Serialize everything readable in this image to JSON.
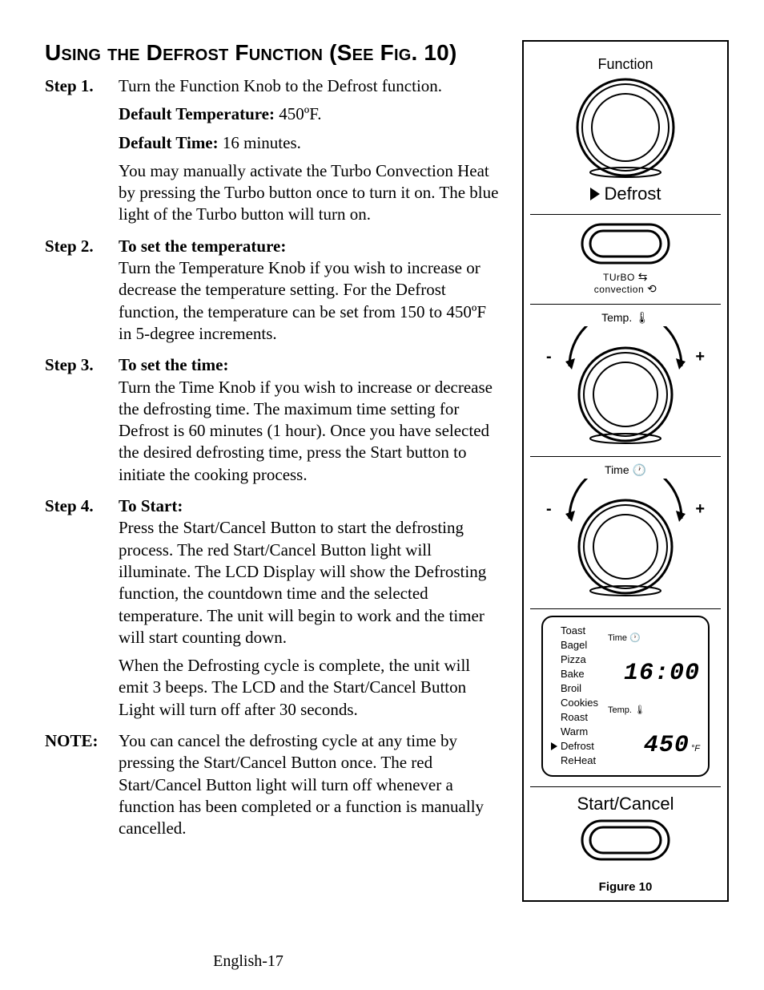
{
  "title": "Using the Defrost Function (See Fig. 10)",
  "steps": {
    "s1": {
      "label": "Step 1.",
      "p1": "Turn the Function Knob to the Defrost function.",
      "p2a": "Default Temperature:",
      "p2b": " 450ºF.",
      "p3a": "Default Time:",
      "p3b": " 16 minutes.",
      "p4": "You may manually activate the Turbo Convection Heat by pressing the Turbo button once to turn it on. The blue light of the Turbo button will turn on."
    },
    "s2": {
      "label": "Step 2.",
      "lead": "To set the temperature:",
      "p1": "Turn the Temperature Knob if you wish to increase or decrease the temperature setting. For the Defrost function, the temperature can be set from 150 to 450ºF in 5-degree increments."
    },
    "s3": {
      "label": "Step 3.",
      "lead": "To set the time:",
      "p1": "Turn the Time Knob if you wish to increase or decrease the defrosting time. The maximum time setting for Defrost is 60 minutes (1 hour). Once you have selected the desired defrosting time, press the Start button to initiate the cooking process."
    },
    "s4": {
      "label": "Step 4.",
      "lead": "To Start:",
      "p1": "Press the Start/Cancel Button to start the defrosting process. The red Start/Cancel Button light will illuminate. The LCD Display will show the Defrosting function, the countdown time and the selected temperature. The unit will begin to work and the timer will start counting down.",
      "p2": "When the Defrosting cycle is complete, the unit will emit 3 beeps. The LCD and the Start/Cancel Button Light will turn off after 30 seconds."
    },
    "note": {
      "label": "NOTE:",
      "p1": "You can cancel the defrosting cycle at any time by pressing the Start/Cancel Button once. The red Start/Cancel Button light will turn off whenever a function has been completed or a function is manually cancelled."
    }
  },
  "footer": "English-17",
  "figure": {
    "function_label": "Function",
    "defrost_label": "Defrost",
    "turbo_label_1": "TUrBO",
    "turbo_label_2": "convection",
    "temp_label": "Temp.",
    "time_label": "Time",
    "start_cancel": "Start/Cancel",
    "caption": "Figure 10",
    "minus": "-",
    "plus": "+",
    "lcd": {
      "items": [
        "Toast",
        "Bagel",
        "Pizza",
        "Bake",
        "Broil",
        "Cookies",
        "Roast",
        "Warm",
        "Defrost",
        "ReHeat"
      ],
      "selected_index": 8,
      "time_label": "Time",
      "temp_label": "Temp.",
      "time_value": "16:00",
      "temp_value": "450",
      "temp_unit": "°F"
    }
  },
  "style": {
    "stroke": "#000000",
    "bg": "#ffffff"
  }
}
